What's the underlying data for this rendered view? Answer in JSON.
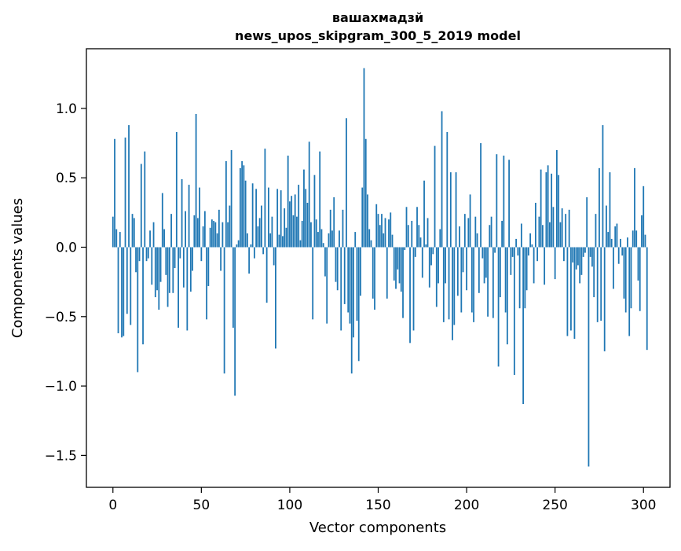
{
  "chart_data": {
    "type": "bar",
    "title_line1": "вашахмадзй",
    "title_line2": "news_upos_skipgram_300_5_2019 model",
    "xlabel": "Vector components",
    "ylabel": "Components values",
    "xlim": [
      -15,
      315
    ],
    "ylim": [
      -1.73,
      1.43
    ],
    "xticks": [
      0,
      50,
      100,
      150,
      200,
      250,
      300
    ],
    "xtick_labels": [
      "0",
      "50",
      "100",
      "150",
      "200",
      "250",
      "300"
    ],
    "yticks": [
      -1.5,
      -1.0,
      -0.5,
      0.0,
      0.5,
      1.0
    ],
    "ytick_labels": [
      "−1.5",
      "−1.0",
      "−0.5",
      "0.0",
      "0.5",
      "1.0"
    ],
    "bar_color": "#1f77b4",
    "grid": false,
    "values": [
      0.22,
      0.78,
      0.13,
      -0.62,
      0.11,
      -0.65,
      -0.64,
      0.79,
      -0.48,
      0.88,
      -0.56,
      0.24,
      0.21,
      -0.18,
      -0.9,
      -0.1,
      0.6,
      -0.7,
      0.69,
      -0.1,
      -0.08,
      0.12,
      -0.27,
      0.18,
      -0.36,
      -0.31,
      -0.45,
      -0.25,
      0.39,
      0.13,
      -0.2,
      -0.43,
      -0.33,
      0.24,
      -0.33,
      -0.15,
      0.83,
      -0.58,
      -0.08,
      0.49,
      -0.29,
      0.26,
      -0.6,
      0.45,
      -0.32,
      -0.17,
      0.23,
      0.96,
      0.21,
      0.43,
      -0.1,
      0.15,
      0.26,
      -0.52,
      -0.28,
      0.14,
      0.2,
      0.19,
      0.18,
      0.1,
      0.27,
      -0.17,
      0.18,
      -0.91,
      0.62,
      0.18,
      0.3,
      0.7,
      -0.58,
      -1.07,
      0.02,
      0.05,
      0.57,
      0.62,
      0.59,
      0.48,
      0.1,
      -0.19,
      0.02,
      0.46,
      -0.08,
      0.42,
      0.15,
      0.21,
      0.3,
      -0.05,
      0.71,
      -0.4,
      0.43,
      0.1,
      0.22,
      -0.13,
      -0.73,
      0.42,
      0.09,
      0.41,
      0.08,
      0.28,
      0.14,
      0.66,
      0.33,
      0.37,
      0.23,
      0.38,
      0.22,
      0.45,
      0.05,
      0.19,
      0.56,
      0.42,
      0.32,
      0.76,
      0.18,
      -0.52,
      0.52,
      0.2,
      0.11,
      0.69,
      0.13,
      0.03,
      -0.21,
      -0.55,
      0.1,
      0.27,
      0.12,
      0.36,
      -0.25,
      -0.31,
      0.12,
      -0.6,
      0.27,
      -0.41,
      0.93,
      -0.47,
      -0.55,
      -0.91,
      -0.65,
      0.11,
      -0.53,
      -0.82,
      -0.35,
      0.43,
      1.29,
      0.78,
      0.38,
      0.13,
      0.05,
      -0.37,
      -0.45,
      0.31,
      0.24,
      0.16,
      0.24,
      0.1,
      0.21,
      -0.37,
      0.2,
      0.25,
      0.09,
      -0.24,
      -0.3,
      -0.16,
      -0.26,
      -0.32,
      -0.51,
      -0.02,
      0.29,
      0.16,
      -0.69,
      0.19,
      -0.6,
      -0.07,
      0.29,
      0.16,
      0.07,
      -0.22,
      0.48,
      0.02,
      0.21,
      -0.29,
      -0.13,
      -0.05,
      0.73,
      -0.43,
      -0.26,
      0.13,
      0.98,
      -0.54,
      -0.26,
      0.83,
      -0.52,
      0.54,
      -0.67,
      -0.56,
      0.54,
      -0.35,
      0.15,
      -0.47,
      -0.18,
      0.24,
      -0.31,
      0.21,
      0.38,
      -0.47,
      -0.54,
      0.22,
      0.1,
      -0.33,
      0.75,
      -0.08,
      -0.26,
      -0.22,
      -0.5,
      0.16,
      0.22,
      -0.51,
      -0.04,
      0.67,
      -0.86,
      -0.36,
      0.19,
      0.66,
      -0.47,
      -0.7,
      0.63,
      -0.2,
      -0.07,
      -0.92,
      0.06,
      -0.06,
      -0.44,
      0.17,
      -1.13,
      -0.44,
      -0.31,
      -0.06,
      0.1,
      0.02,
      -0.26,
      0.32,
      -0.1,
      0.22,
      0.56,
      0.16,
      -0.27,
      0.54,
      0.59,
      0.18,
      0.53,
      0.29,
      -0.23,
      0.7,
      0.52,
      0.18,
      0.28,
      -0.1,
      0.24,
      -0.64,
      0.27,
      -0.6,
      -0.11,
      -0.66,
      -0.16,
      -0.13,
      -0.26,
      -0.2,
      -0.07,
      -0.04,
      0.36,
      -1.58,
      -0.07,
      -0.14,
      -0.36,
      0.24,
      -0.54,
      0.57,
      -0.53,
      0.88,
      -0.75,
      0.3,
      0.11,
      0.54,
      0.06,
      -0.3,
      0.15,
      0.17,
      -0.12,
      0.06,
      -0.06,
      -0.37,
      -0.47,
      0.07,
      -0.64,
      -0.44,
      0.12,
      0.57,
      0.12,
      -0.24,
      -0.46,
      0.23,
      0.44,
      0.09,
      -0.74
    ]
  }
}
